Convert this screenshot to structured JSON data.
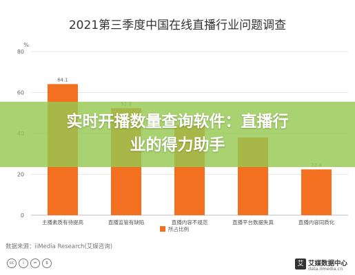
{
  "chart_data": {
    "type": "bar",
    "title": "2021第三季度中国在线直播行业问题调查",
    "ylabel": "%",
    "ylim": [
      0,
      80
    ],
    "yticks": [
      0,
      20,
      40,
      60,
      80
    ],
    "grid": true,
    "legend_position": "bottom",
    "categories": [
      "主播素质有待提高",
      "直播监管有缺陷",
      "直播内容不规范",
      "直播平台数据失真",
      "直播内容同质化"
    ],
    "series": [
      {
        "name": "所占比例",
        "values": [
          64.1,
          52.3,
          44.0,
          38.0,
          22.4
        ],
        "color": "#F37021"
      }
    ],
    "data_labels": [
      "64.1",
      "52.3",
      "",
      "",
      "22.4"
    ]
  },
  "banner": {
    "line1": "实时开播数量查询软件：直播行",
    "line2": "业的得力助手",
    "color": "#96C850"
  },
  "footer": {
    "source": "数据来源：iiMedia Research(艾媒咨询)",
    "license_icons": [
      "cc-icon",
      "by-icon",
      "equal-icon",
      "nc-icon"
    ],
    "logo_mark": "艾",
    "logo_name": "艾媒数据中心",
    "logo_url": "data.iimedia.cn"
  }
}
